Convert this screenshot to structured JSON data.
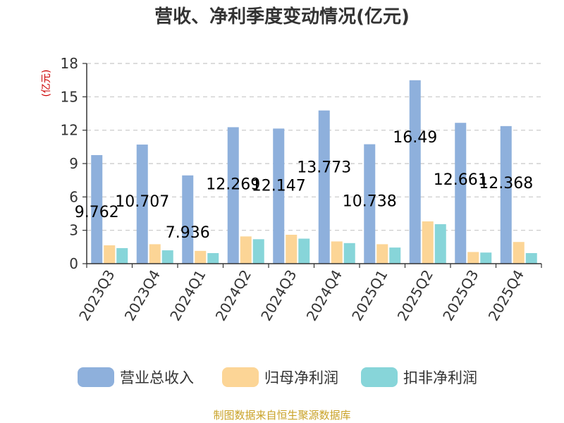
{
  "chart_data": {
    "type": "bar",
    "title": "营收、净利季度变动情况(亿元)",
    "ylabel": "(亿元)",
    "ylim": [
      0,
      18
    ],
    "yticks": [
      0,
      3,
      6,
      9,
      12,
      15,
      18
    ],
    "grid": true,
    "legend_position": "bottom",
    "categories": [
      "2023Q3",
      "2023Q4",
      "2024Q1",
      "2024Q2",
      "2024Q3",
      "2024Q4",
      "2025Q1",
      "2025Q2",
      "2025Q3",
      "2025Q4"
    ],
    "series": [
      {
        "name": "营业总收入",
        "color": "#8eb0dc",
        "values": [
          9.762,
          10.707,
          7.936,
          12.269,
          12.147,
          13.773,
          10.738,
          16.49,
          12.661,
          12.368
        ],
        "labels": [
          "9.762",
          "10.707",
          "7.936",
          "12.269",
          "12.147",
          "13.773",
          "10.738",
          "16.49",
          "12.661",
          "12.368"
        ]
      },
      {
        "name": "归母净利润",
        "color": "#fcd596",
        "values": [
          1.65,
          1.75,
          1.15,
          2.45,
          2.6,
          2.0,
          1.75,
          3.8,
          1.05,
          1.95
        ]
      },
      {
        "name": "扣非净利润",
        "color": "#87d5d9",
        "values": [
          1.4,
          1.2,
          0.95,
          2.2,
          2.25,
          1.85,
          1.45,
          3.55,
          1.0,
          0.95
        ]
      }
    ],
    "source": "制图数据来自恒生聚源数据库"
  }
}
